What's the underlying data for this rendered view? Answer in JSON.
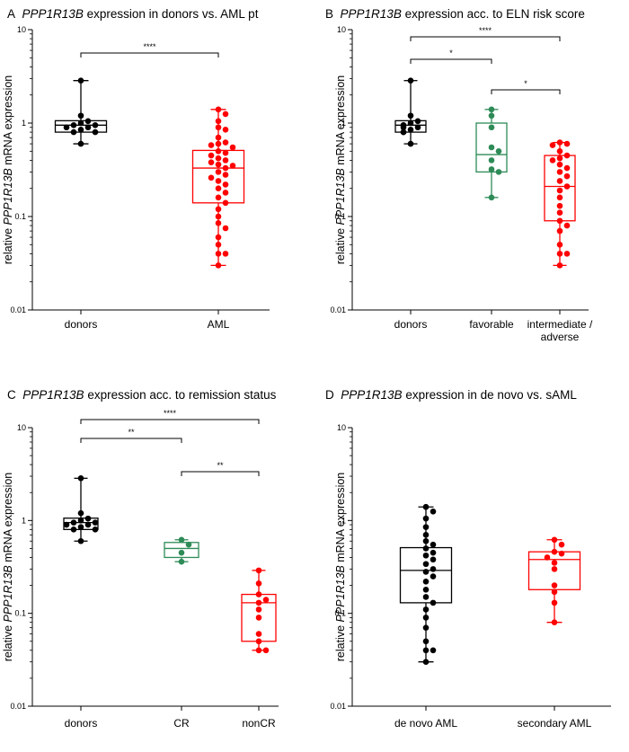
{
  "colors": {
    "black": "#000000",
    "green": "#2e8b57",
    "red": "#ff0000"
  },
  "chart_data": [
    {
      "type": "box",
      "panel": "A",
      "title_prefix": "A",
      "title_gene": "PPP1R13B",
      "title_suffix": "expression in donors vs. AML pt",
      "ylabel_prefix": "relative",
      "ylabel_gene": "PPP1R13B",
      "ylabel_suffix": "mRNA expression",
      "yscale": "log",
      "ylim": [
        0.01,
        10
      ],
      "yticks": [
        {
          "value": 0.01,
          "label": "0.01"
        },
        {
          "value": 0.1,
          "label": "0.1"
        },
        {
          "value": 1,
          "label": "1"
        },
        {
          "value": 10,
          "label": "10"
        }
      ],
      "groups": [
        {
          "label": [
            "donors"
          ],
          "color": "black",
          "min": 0.6,
          "q1": 0.8,
          "median": 0.95,
          "q3": 1.06,
          "max": 2.85,
          "points": [
            2.85,
            1.2,
            1.05,
            1.0,
            0.95,
            0.95,
            0.9,
            0.9,
            0.85,
            0.8,
            0.8,
            0.6
          ]
        },
        {
          "label": [
            "AML"
          ],
          "color": "red",
          "min": 0.03,
          "q1": 0.14,
          "median": 0.33,
          "q3": 0.51,
          "max": 1.4,
          "points": [
            1.4,
            1.25,
            1.05,
            0.9,
            0.85,
            0.7,
            0.62,
            0.6,
            0.58,
            0.55,
            0.5,
            0.48,
            0.45,
            0.42,
            0.4,
            0.38,
            0.36,
            0.35,
            0.33,
            0.3,
            0.28,
            0.26,
            0.24,
            0.22,
            0.2,
            0.18,
            0.16,
            0.14,
            0.12,
            0.1,
            0.085,
            0.075,
            0.06,
            0.05,
            0.04,
            0.04,
            0.03
          ]
        }
      ],
      "significance": [
        {
          "from": 0,
          "to": 1,
          "label": "****"
        }
      ]
    },
    {
      "type": "box",
      "panel": "B",
      "title_prefix": "B",
      "title_gene": "PPP1R13B",
      "title_suffix": "expression acc. to ELN risk score",
      "ylabel_prefix": "relative",
      "ylabel_gene": "PPP1R13B",
      "ylabel_suffix": "mRNA expression",
      "yscale": "log",
      "ylim": [
        0.01,
        10
      ],
      "yticks": [
        {
          "value": 0.01,
          "label": "0.01"
        },
        {
          "value": 0.1,
          "label": "0.1"
        },
        {
          "value": 1,
          "label": "1"
        },
        {
          "value": 10,
          "label": "10"
        }
      ],
      "groups": [
        {
          "label": [
            "donors"
          ],
          "color": "black",
          "min": 0.6,
          "q1": 0.8,
          "median": 0.95,
          "q3": 1.06,
          "max": 2.85,
          "points": [
            2.85,
            1.2,
            1.05,
            1.0,
            0.95,
            0.95,
            0.9,
            0.9,
            0.85,
            0.8,
            0.8,
            0.6
          ]
        },
        {
          "label": [
            "favorable"
          ],
          "color": "green",
          "min": 0.16,
          "q1": 0.3,
          "median": 0.46,
          "q3": 1.0,
          "max": 1.4,
          "points": [
            1.4,
            1.2,
            0.9,
            0.55,
            0.5,
            0.4,
            0.32,
            0.3,
            0.16
          ]
        },
        {
          "label": [
            "intermediate /",
            "adverse"
          ],
          "color": "red",
          "min": 0.03,
          "q1": 0.09,
          "median": 0.21,
          "q3": 0.45,
          "max": 0.62,
          "points": [
            0.62,
            0.6,
            0.58,
            0.5,
            0.45,
            0.42,
            0.4,
            0.36,
            0.33,
            0.3,
            0.27,
            0.24,
            0.21,
            0.19,
            0.16,
            0.13,
            0.11,
            0.09,
            0.08,
            0.07,
            0.05,
            0.04,
            0.04,
            0.03
          ]
        }
      ],
      "significance": [
        {
          "from": 0,
          "to": 2,
          "label": "****"
        },
        {
          "from": 0,
          "to": 1,
          "label": "*"
        },
        {
          "from": 1,
          "to": 2,
          "label": "*"
        }
      ]
    },
    {
      "type": "box",
      "panel": "C",
      "title_prefix": "C",
      "title_gene": "PPP1R13B",
      "title_suffix": "expression acc. to remission status",
      "ylabel_prefix": "relative",
      "ylabel_gene": "PPP1R13B",
      "ylabel_suffix": "mRNA expression",
      "yscale": "log",
      "ylim": [
        0.01,
        10
      ],
      "yticks": [
        {
          "value": 0.01,
          "label": "0.01"
        },
        {
          "value": 0.1,
          "label": "0.1"
        },
        {
          "value": 1,
          "label": "1"
        },
        {
          "value": 10,
          "label": "10"
        }
      ],
      "groups": [
        {
          "label": [
            "donors"
          ],
          "color": "black",
          "min": 0.6,
          "q1": 0.8,
          "median": 0.95,
          "q3": 1.06,
          "max": 2.85,
          "points": [
            2.85,
            1.2,
            1.05,
            1.0,
            0.95,
            0.95,
            0.9,
            0.9,
            0.85,
            0.8,
            0.8,
            0.6
          ]
        },
        {
          "label": [
            "CR"
          ],
          "color": "green",
          "min": 0.36,
          "q1": 0.4,
          "median": 0.5,
          "q3": 0.58,
          "max": 0.62,
          "points": [
            0.62,
            0.55,
            0.45,
            0.36
          ]
        },
        {
          "label": [
            "nonCR"
          ],
          "color": "red",
          "min": 0.04,
          "q1": 0.05,
          "median": 0.13,
          "q3": 0.16,
          "max": 0.29,
          "points": [
            0.29,
            0.21,
            0.16,
            0.14,
            0.13,
            0.11,
            0.09,
            0.06,
            0.05,
            0.04,
            0.04
          ]
        }
      ],
      "significance": [
        {
          "from": 0,
          "to": 2,
          "label": "****"
        },
        {
          "from": 0,
          "to": 1,
          "label": "**"
        },
        {
          "from": 1,
          "to": 2,
          "label": "**"
        }
      ]
    },
    {
      "type": "box",
      "panel": "D",
      "title_prefix": "D",
      "title_gene": "PPP1R13B",
      "title_suffix": "expression in de novo vs. sAML",
      "ylabel_prefix": "relative",
      "ylabel_gene": "PPP1R13B",
      "ylabel_suffix": "mRNA expression",
      "yscale": "log",
      "ylim": [
        0.01,
        10
      ],
      "yticks": [
        {
          "value": 0.01,
          "label": "0.01"
        },
        {
          "value": 0.1,
          "label": "0.1"
        },
        {
          "value": 1,
          "label": "1"
        },
        {
          "value": 10,
          "label": "10"
        }
      ],
      "groups": [
        {
          "label": [
            "de novo AML"
          ],
          "color": "black",
          "min": 0.03,
          "q1": 0.13,
          "median": 0.29,
          "q3": 0.51,
          "max": 1.4,
          "points": [
            1.4,
            1.25,
            1.05,
            0.85,
            0.7,
            0.6,
            0.55,
            0.5,
            0.45,
            0.42,
            0.38,
            0.34,
            0.3,
            0.28,
            0.25,
            0.22,
            0.18,
            0.15,
            0.13,
            0.11,
            0.09,
            0.07,
            0.05,
            0.04,
            0.04,
            0.03
          ]
        },
        {
          "label": [
            "secondary AML"
          ],
          "color": "red",
          "min": 0.08,
          "q1": 0.18,
          "median": 0.38,
          "q3": 0.46,
          "max": 0.62,
          "points": [
            0.62,
            0.55,
            0.46,
            0.44,
            0.4,
            0.35,
            0.3,
            0.2,
            0.17,
            0.13,
            0.08
          ]
        }
      ],
      "significance": []
    }
  ]
}
